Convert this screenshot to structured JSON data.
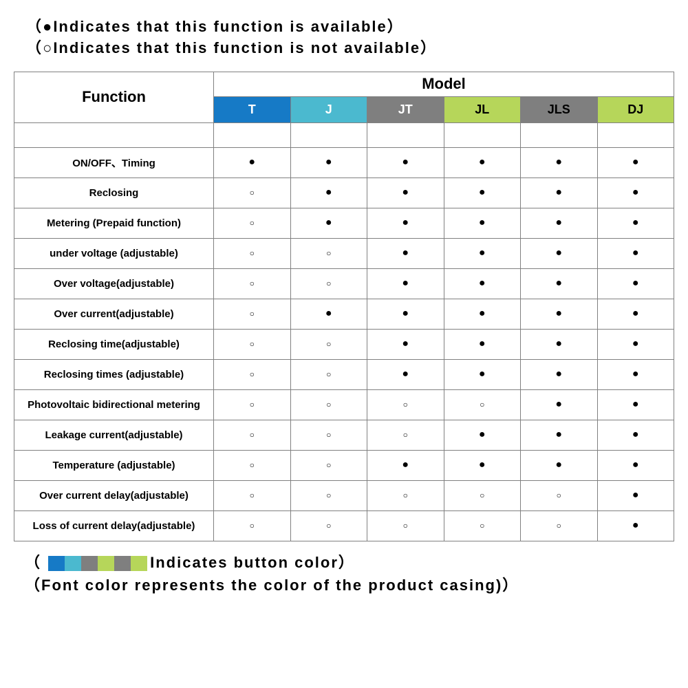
{
  "legend_top": {
    "line1_symbol": "●",
    "line1_text": "Indicates that this function is available",
    "line2_symbol": "○",
    "line2_text": "Indicates that this function is not available"
  },
  "table": {
    "function_header": "Function",
    "model_header": "Model",
    "models": [
      {
        "label": "T",
        "bg": "#167ac6",
        "fg": "#ffffff"
      },
      {
        "label": "J",
        "bg": "#4bb9cf",
        "fg": "#ffffff"
      },
      {
        "label": "JT",
        "bg": "#7f7f7f",
        "fg": "#ffffff"
      },
      {
        "label": "JL",
        "bg": "#b6d65a",
        "fg": "#000000"
      },
      {
        "label": "JLS",
        "bg": "#7f7f7f",
        "fg": "#000000"
      },
      {
        "label": "DJ",
        "bg": "#b6d65a",
        "fg": "#000000"
      }
    ],
    "symbol_available": "●",
    "symbol_unavailable": "○",
    "rows": [
      {
        "label": "ON/OFF、Timing",
        "cells": [
          1,
          1,
          1,
          1,
          1,
          1
        ]
      },
      {
        "label": "Reclosing",
        "cells": [
          0,
          1,
          1,
          1,
          1,
          1
        ]
      },
      {
        "label": "Metering (Prepaid function)",
        "cells": [
          0,
          1,
          1,
          1,
          1,
          1
        ]
      },
      {
        "label": "under voltage (adjustable)",
        "cells": [
          0,
          0,
          1,
          1,
          1,
          1
        ]
      },
      {
        "label": "Over voltage(adjustable)",
        "cells": [
          0,
          0,
          1,
          1,
          1,
          1
        ]
      },
      {
        "label": "Over current(adjustable)",
        "cells": [
          0,
          1,
          1,
          1,
          1,
          1
        ]
      },
      {
        "label": "Reclosing time(adjustable)",
        "cells": [
          0,
          0,
          1,
          1,
          1,
          1
        ]
      },
      {
        "label": "Reclosing times (adjustable)",
        "cells": [
          0,
          0,
          1,
          1,
          1,
          1
        ]
      },
      {
        "label": "Photovoltaic bidirectional metering",
        "cells": [
          0,
          0,
          0,
          0,
          1,
          1
        ]
      },
      {
        "label": "Leakage current(adjustable)",
        "cells": [
          0,
          0,
          0,
          1,
          1,
          1
        ]
      },
      {
        "label": "Temperature (adjustable)",
        "cells": [
          0,
          0,
          1,
          1,
          1,
          1
        ]
      },
      {
        "label": "Over current delay(adjustable)",
        "cells": [
          0,
          0,
          0,
          0,
          0,
          1
        ]
      },
      {
        "label": "Loss of current delay(adjustable)",
        "cells": [
          0,
          0,
          0,
          0,
          0,
          1
        ]
      }
    ]
  },
  "legend_bottom": {
    "swatch_colors": [
      "#167ac6",
      "#4bb9cf",
      "#7f7f7f",
      "#b6d65a",
      "#7f7f7f",
      "#b6d65a"
    ],
    "line1_text": "Indicates button color",
    "line2_text": "Font color represents the color of the product casing)"
  },
  "style": {
    "border_color": "#808080",
    "body_fontsize": 15,
    "header_fontsize": 22,
    "legend_fontsize": 22,
    "letter_spacing": 2,
    "background_color": "#ffffff",
    "text_color": "#000000"
  }
}
